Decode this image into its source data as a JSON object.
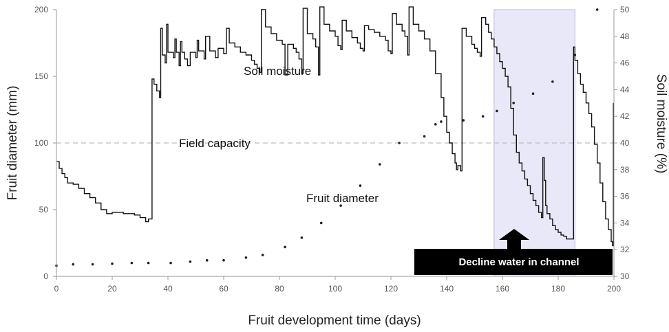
{
  "chart_data": {
    "type": "line",
    "title": "",
    "xlabel": "Fruit development time (days)",
    "ylabel_left": "Fruit diameter (mm)",
    "ylabel_right": "Soil moisture (%)",
    "xlim": [
      0,
      200
    ],
    "ylim_left": [
      0,
      200
    ],
    "ylim_right": [
      30,
      50
    ],
    "x_ticks": [
      "0",
      "20",
      "40",
      "60",
      "80",
      "100",
      "120",
      "140",
      "160",
      "180",
      "200"
    ],
    "y_left_ticks": [
      "0",
      "50",
      "100",
      "150",
      "200"
    ],
    "y_right_ticks": [
      "30",
      "32",
      "34",
      "36",
      "38",
      "40",
      "42",
      "44",
      "46",
      "48",
      "50"
    ],
    "field_capacity": {
      "label": "Field capacity",
      "value_pct": 40
    },
    "shaded_region": {
      "x_start": 157,
      "x_end": 186
    },
    "annotations": {
      "soil_moisture": "Soil moisture",
      "fruit_diameter": "Fruit diameter",
      "callout": "Decline water in channel"
    },
    "series": [
      {
        "name": "Fruit diameter",
        "axis": "left",
        "style": "dots",
        "points": [
          [
            0,
            8
          ],
          [
            6,
            9
          ],
          [
            13,
            9
          ],
          [
            20,
            9.5
          ],
          [
            27,
            10
          ],
          [
            33,
            10
          ],
          [
            41,
            10
          ],
          [
            48,
            11
          ],
          [
            54,
            12
          ],
          [
            60,
            12
          ],
          [
            68,
            14
          ],
          [
            74,
            16
          ],
          [
            82,
            22
          ],
          [
            88,
            29
          ],
          [
            95,
            40
          ],
          [
            102,
            53
          ],
          [
            109,
            68
          ],
          [
            116,
            84
          ],
          [
            123,
            100
          ],
          [
            132,
            105
          ],
          [
            136,
            114
          ],
          [
            138,
            116
          ],
          [
            146,
            117
          ],
          [
            153,
            120
          ],
          [
            158,
            124
          ],
          [
            164,
            130
          ],
          [
            171,
            137
          ],
          [
            178,
            146
          ],
          [
            186,
            166
          ],
          [
            194,
            200
          ]
        ]
      },
      {
        "name": "Soil moisture",
        "axis": "right",
        "style": "line",
        "points": [
          [
            0,
            38.6
          ],
          [
            1,
            38.1
          ],
          [
            2,
            37.7
          ],
          [
            3,
            37.4
          ],
          [
            4,
            37.0
          ],
          [
            6,
            36.9
          ],
          [
            8,
            36.6
          ],
          [
            10,
            36.2
          ],
          [
            12,
            35.9
          ],
          [
            14,
            35.5
          ],
          [
            16,
            35.0
          ],
          [
            18,
            34.7
          ],
          [
            20,
            34.8
          ],
          [
            24,
            34.7
          ],
          [
            28,
            34.6
          ],
          [
            30,
            34.4
          ],
          [
            32,
            34.1
          ],
          [
            33,
            34.3
          ],
          [
            34,
            34.3
          ],
          [
            34.3,
            44.8
          ],
          [
            35,
            44.4
          ],
          [
            36,
            43.9
          ],
          [
            37,
            43.4
          ],
          [
            37.4,
            48.6
          ],
          [
            38,
            46.6
          ],
          [
            39,
            46.0
          ],
          [
            39.5,
            48.9
          ],
          [
            40,
            46.8
          ],
          [
            42,
            46.4
          ],
          [
            42.5,
            47.8
          ],
          [
            43,
            46.8
          ],
          [
            44,
            45.8
          ],
          [
            44.5,
            47.6
          ],
          [
            45,
            46.8
          ],
          [
            46,
            46.3
          ],
          [
            47,
            45.8
          ],
          [
            48,
            46.8
          ],
          [
            50,
            46.4
          ],
          [
            50.5,
            47.7
          ],
          [
            51,
            46.9
          ],
          [
            53,
            46.3
          ],
          [
            53.5,
            48.0
          ],
          [
            55,
            46.9
          ],
          [
            57,
            46.4
          ],
          [
            58,
            47.1
          ],
          [
            60,
            46.7
          ],
          [
            61,
            48.6
          ],
          [
            62,
            47.5
          ],
          [
            64,
            47.2
          ],
          [
            66,
            46.8
          ],
          [
            68,
            46.6
          ],
          [
            70,
            46.2
          ],
          [
            71,
            45.9
          ],
          [
            72,
            45.6
          ],
          [
            73,
            45.3
          ],
          [
            73.5,
            50.0
          ],
          [
            75,
            48.7
          ],
          [
            77,
            48.2
          ],
          [
            79,
            47.7
          ],
          [
            81,
            47.4
          ],
          [
            82,
            45.1
          ],
          [
            83,
            47.4
          ],
          [
            85,
            47.1
          ],
          [
            86,
            46.8
          ],
          [
            87,
            46.3
          ],
          [
            88,
            45.2
          ],
          [
            88.5,
            50.1
          ],
          [
            90,
            48.2
          ],
          [
            92,
            47.8
          ],
          [
            93,
            47.2
          ],
          [
            94,
            45.1
          ],
          [
            94.5,
            50.2
          ],
          [
            96,
            48.9
          ],
          [
            98,
            48.4
          ],
          [
            100,
            48.0
          ],
          [
            101,
            47.3
          ],
          [
            102,
            47.0
          ],
          [
            102.5,
            49.2
          ],
          [
            104,
            48.4
          ],
          [
            106,
            47.9
          ],
          [
            108,
            47.5
          ],
          [
            109,
            47.1
          ],
          [
            110,
            46.9
          ],
          [
            110.5,
            48.8
          ],
          [
            112,
            48.5
          ],
          [
            114,
            48.3
          ],
          [
            116,
            48.0
          ],
          [
            118,
            47.7
          ],
          [
            119,
            46.9
          ],
          [
            120,
            46.7
          ],
          [
            120.5,
            49.7
          ],
          [
            122,
            48.9
          ],
          [
            124,
            48.4
          ],
          [
            125,
            48.0
          ],
          [
            126,
            46.6
          ],
          [
            126.5,
            50.2
          ],
          [
            128,
            48.9
          ],
          [
            130,
            48.4
          ],
          [
            132,
            47.8
          ],
          [
            134,
            46.9
          ],
          [
            136,
            45.2
          ],
          [
            138,
            43.4
          ],
          [
            139,
            42.0
          ],
          [
            140,
            40.8
          ],
          [
            141,
            40.0
          ],
          [
            142,
            39.2
          ],
          [
            143,
            38.5
          ],
          [
            143.5,
            38.0
          ],
          [
            144,
            38.3
          ],
          [
            145,
            37.9
          ],
          [
            145.5,
            48.6
          ],
          [
            147,
            48.0
          ],
          [
            149,
            47.4
          ],
          [
            150,
            47.1
          ],
          [
            151,
            46.8
          ],
          [
            152,
            46.5
          ],
          [
            152.5,
            49.4
          ],
          [
            154,
            48.9
          ],
          [
            155,
            48.3
          ],
          [
            156,
            47.8
          ],
          [
            157,
            47.2
          ],
          [
            158,
            46.7
          ],
          [
            159,
            46.1
          ],
          [
            160,
            45.6
          ],
          [
            161,
            45.0
          ],
          [
            162,
            44.2
          ],
          [
            163,
            42.6
          ],
          [
            164,
            40.6
          ],
          [
            165,
            39.3
          ],
          [
            166,
            38.5
          ],
          [
            167,
            37.9
          ],
          [
            168,
            37.3
          ],
          [
            169,
            36.8
          ],
          [
            170,
            36.2
          ],
          [
            171,
            35.7
          ],
          [
            172,
            35.3
          ],
          [
            173,
            34.8
          ],
          [
            174,
            34.4
          ],
          [
            174.5,
            38.9
          ],
          [
            175,
            37.2
          ],
          [
            175.5,
            35.3
          ],
          [
            176,
            34.7
          ],
          [
            177,
            34.3
          ],
          [
            178,
            33.8
          ],
          [
            179,
            33.5
          ],
          [
            180,
            33.3
          ],
          [
            181,
            33.1
          ],
          [
            182,
            33.0
          ],
          [
            183,
            32.8
          ],
          [
            184,
            32.8
          ],
          [
            185,
            32.8
          ],
          [
            185.5,
            47.2
          ],
          [
            186,
            46.2
          ],
          [
            187,
            45.2
          ],
          [
            188,
            44.4
          ],
          [
            189,
            43.8
          ],
          [
            190,
            43.0
          ],
          [
            191,
            42.2
          ],
          [
            192,
            41.2
          ],
          [
            193,
            39.9
          ],
          [
            194,
            38.5
          ],
          [
            195,
            37.0
          ],
          [
            196,
            35.6
          ],
          [
            197,
            34.3
          ],
          [
            198,
            33.5
          ],
          [
            199,
            32.6
          ],
          [
            199.5,
            32.3
          ],
          [
            199.8,
            43.0
          ]
        ]
      }
    ]
  }
}
